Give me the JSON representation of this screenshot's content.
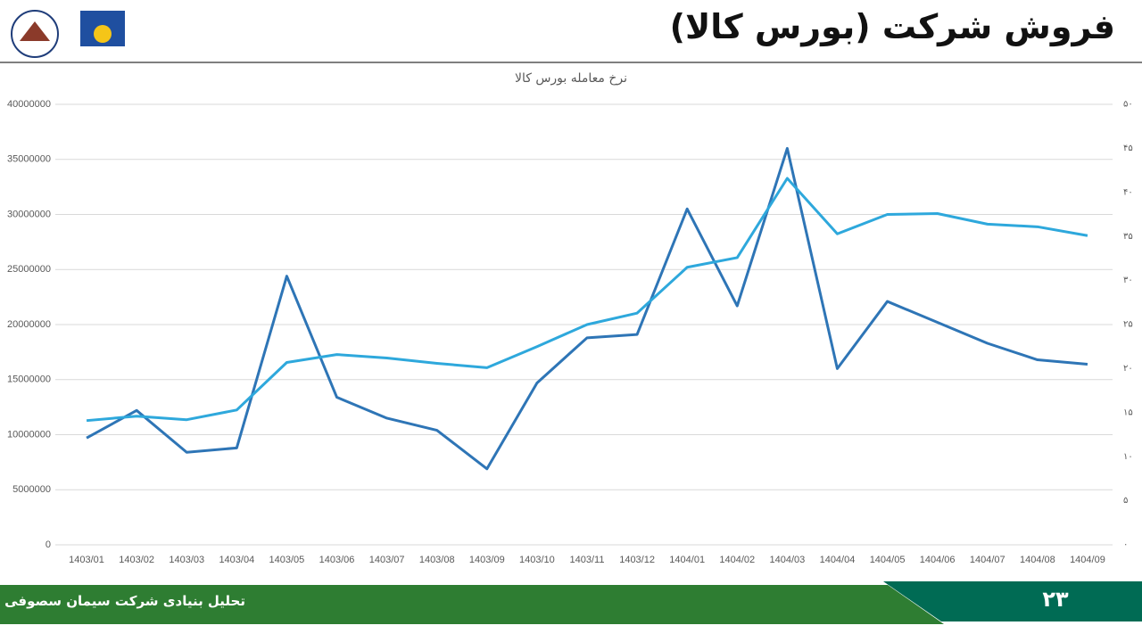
{
  "header": {
    "title": "فروش شرکت (بورس کالا)"
  },
  "footer": {
    "text": "تحلیل بنیادی شرکت سیمان سصوفی",
    "page_number": "۲۳"
  },
  "chart_data": {
    "type": "line",
    "title": "نرخ معامله بورس کالا",
    "categories": [
      "1403/01",
      "1403/02",
      "1403/03",
      "1403/04",
      "1403/05",
      "1403/06",
      "1403/07",
      "1403/08",
      "1403/09",
      "1403/10",
      "1403/11",
      "1403/12",
      "1404/01",
      "1404/02",
      "1404/03",
      "1404/04",
      "1404/05",
      "1404/06",
      "1404/07",
      "1404/08",
      "1404/09"
    ],
    "series": [
      {
        "color": "#2e75b6",
        "values": [
          9700000,
          12200000,
          8400000,
          8800000,
          24400000,
          13400000,
          11500000,
          10400000,
          6900000,
          14700000,
          18800000,
          19100000,
          30500000,
          21700000,
          36000000,
          16000000,
          22100000,
          20200000,
          18300000,
          16800000,
          16400000
        ]
      },
      {
        "color": "#2ea8dc",
        "axis": "y2",
        "values": [
          14.1,
          14.6,
          14.2,
          15.3,
          20.7,
          21.6,
          21.2,
          20.6,
          20.1,
          22.5,
          25.0,
          26.3,
          31.5,
          32.6,
          41.6,
          35.3,
          37.5,
          37.6,
          36.4,
          36.1,
          35.1
        ]
      }
    ],
    "ylim": [
      0,
      40000000
    ],
    "yticks": [
      0,
      5000000,
      10000000,
      15000000,
      20000000,
      25000000,
      30000000,
      35000000,
      40000000
    ],
    "y2lim": [
      0,
      50
    ],
    "y2ticks": [
      {
        "value": 0,
        "label": "۰"
      },
      {
        "value": 5,
        "label": "۵"
      },
      {
        "value": 10,
        "label": "۱۰"
      },
      {
        "value": 15,
        "label": "۱۵"
      },
      {
        "value": 20,
        "label": "۲۰"
      },
      {
        "value": 25,
        "label": "۲۵"
      },
      {
        "value": 30,
        "label": "۳۰"
      },
      {
        "value": 35,
        "label": "۳۵"
      },
      {
        "value": 40,
        "label": "۴۰"
      },
      {
        "value": 45,
        "label": "۴۵"
      },
      {
        "value": 50,
        "label": "۵۰"
      }
    ],
    "grid": true
  }
}
